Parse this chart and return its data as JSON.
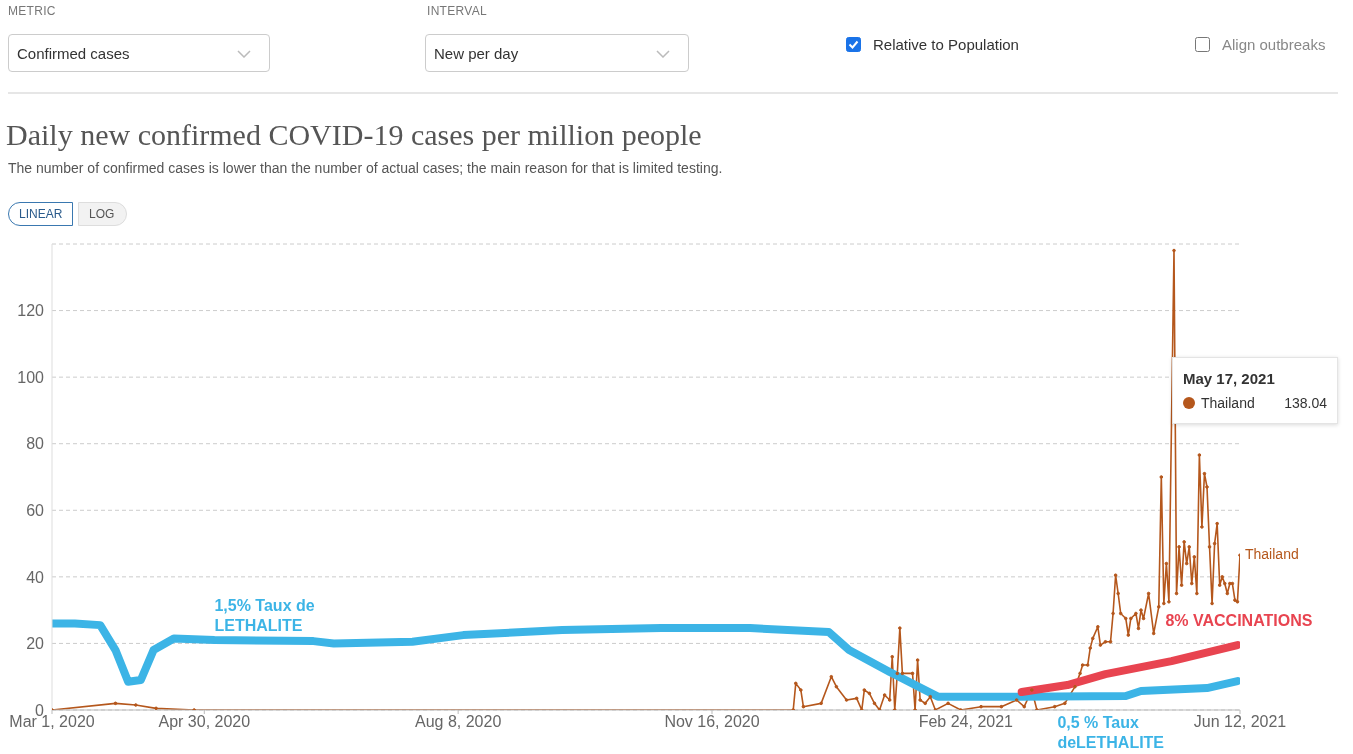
{
  "chart_data": {
    "type": "line",
    "title": "Daily new confirmed COVID-19 cases per million people",
    "subtitle": "The number of confirmed cases is lower than the number of actual cases; the main reason for that is limited testing.",
    "xlim": [
      "2020-03-01",
      "2021-06-12"
    ],
    "xticks": [
      {
        "value": "2020-03-01",
        "label": "Mar 1, 2020"
      },
      {
        "value": "2020-04-30",
        "label": "Apr 30, 2020"
      },
      {
        "value": "2020-08-08",
        "label": "Aug 8, 2020"
      },
      {
        "value": "2020-11-16",
        "label": "Nov 16, 2020"
      },
      {
        "value": "2021-02-24",
        "label": "Feb 24, 2021"
      },
      {
        "value": "2021-06-12",
        "label": "Jun 12, 2021"
      }
    ],
    "ylim": [
      0,
      140
    ],
    "yticks": [
      0,
      20,
      40,
      60,
      80,
      100,
      120
    ],
    "grid": "y",
    "legend": "top right",
    "marker": "circle",
    "series": [
      {
        "name": "Thailand",
        "color": "#b5571c",
        "x": [
          "2020-03-01",
          "2020-03-26",
          "2020-04-03",
          "2020-04-11",
          "2020-04-26",
          "2020-12-18",
          "2020-12-19",
          "2020-12-21",
          "2020-12-22",
          "2020-12-29",
          "2021-01-02",
          "2021-01-04",
          "2021-01-08",
          "2021-01-12",
          "2021-01-14",
          "2021-01-15",
          "2021-01-17",
          "2021-01-19",
          "2021-01-21",
          "2021-01-23",
          "2021-01-25",
          "2021-01-26",
          "2021-01-27",
          "2021-01-28",
          "2021-01-29",
          "2021-01-30",
          "2021-02-03",
          "2021-02-04",
          "2021-02-05",
          "2021-02-06",
          "2021-02-08",
          "2021-02-10",
          "2021-02-12",
          "2021-02-17",
          "2021-02-22",
          "2021-03-02",
          "2021-03-10",
          "2021-03-16",
          "2021-03-19",
          "2021-03-22",
          "2021-03-24",
          "2021-03-31",
          "2021-04-04",
          "2021-04-08",
          "2021-04-10",
          "2021-04-11",
          "2021-04-13",
          "2021-04-14",
          "2021-04-15",
          "2021-04-17",
          "2021-04-18",
          "2021-04-20",
          "2021-04-22",
          "2021-04-23",
          "2021-04-24",
          "2021-04-25",
          "2021-04-26",
          "2021-04-28",
          "2021-04-29",
          "2021-04-30",
          "2021-05-02",
          "2021-05-03",
          "2021-05-04",
          "2021-05-05",
          "2021-05-07",
          "2021-05-09",
          "2021-05-11",
          "2021-05-12",
          "2021-05-13",
          "2021-05-14",
          "2021-05-15",
          "2021-05-17",
          "2021-05-18",
          "2021-05-19",
          "2021-05-20",
          "2021-05-21",
          "2021-05-22",
          "2021-05-23",
          "2021-05-24",
          "2021-05-25",
          "2021-05-26",
          "2021-05-27",
          "2021-05-28",
          "2021-05-29",
          "2021-05-30",
          "2021-05-31",
          "2021-06-01",
          "2021-06-02",
          "2021-06-03",
          "2021-06-04",
          "2021-06-05",
          "2021-06-06",
          "2021-06-07",
          "2021-06-08",
          "2021-06-09",
          "2021-06-10",
          "2021-06-11",
          "2021-06-12"
        ],
        "values": [
          0,
          2,
          1.5,
          0.5,
          0,
          0,
          8,
          6,
          1,
          2,
          10,
          7,
          3,
          3.5,
          0,
          6,
          5,
          2,
          0,
          4.5,
          3,
          16,
          0,
          11,
          24.6,
          11,
          11,
          0,
          15,
          3,
          2,
          4,
          0,
          2,
          0,
          1,
          1,
          3,
          1,
          6,
          0,
          1,
          2,
          7,
          11,
          13.5,
          13.5,
          18.6,
          21.5,
          25,
          19.5,
          20.5,
          20.5,
          29,
          40.5,
          35,
          29,
          27.5,
          22.5,
          27.5,
          29,
          24.5,
          30,
          27.5,
          35,
          23,
          31,
          70,
          32,
          44,
          32.5,
          138.04,
          35,
          49,
          37.5,
          50.5,
          44,
          49,
          38,
          46,
          35,
          76.6,
          55,
          71,
          67,
          49,
          32,
          50,
          56,
          37.5,
          40,
          38,
          35,
          38,
          38,
          33,
          32.5,
          46.5
        ]
      },
      {
        "color": "#3cb4e6",
        "marker": "none",
        "x": [
          "2020-03-01",
          "2020-03-10",
          "2020-03-20",
          "2020-03-26",
          "2020-03-31",
          "2020-04-05",
          "2020-04-10",
          "2020-04-18",
          "2020-05-04",
          "2020-06-12",
          "2020-06-20",
          "2020-07-21",
          "2020-08-10",
          "2020-09-18",
          "2020-10-27",
          "2020-12-01",
          "2021-01-01",
          "2021-01-09",
          "2021-01-25",
          "2021-02-13",
          "2021-03-18",
          "2021-04-28",
          "2021-05-04",
          "2021-05-30",
          "2021-06-11"
        ],
        "values": [
          26,
          26,
          25.5,
          18,
          8.5,
          9,
          18,
          21.5,
          21,
          20.7,
          20,
          20.5,
          22.5,
          24,
          24.6,
          24.6,
          23.4,
          18,
          11.4,
          4,
          4,
          4.2,
          5.7,
          6.6,
          8.7
        ]
      },
      {
        "color": "#e84450",
        "marker": "none",
        "x": [
          "2021-03-18",
          "2021-04-05",
          "2021-04-20",
          "2021-05-16",
          "2021-06-11"
        ],
        "values": [
          5.4,
          7.5,
          10.8,
          14.7,
          19.5
        ]
      }
    ],
    "annotations": [
      "METRIC",
      "Confirmed cases",
      "INTERVAL",
      "New per day",
      "Relative to Population",
      "Align outbreaks",
      "LINEAR",
      "LOG",
      "May 17, 2021",
      "138.04",
      {
        "text": "1,5% Taux de\nLETHALITE",
        "x": "2020-05-04",
        "y": 21
      },
      {
        "text": "8% VACCINATIONS",
        "x": "2021-05-16",
        "y": 14.7
      },
      {
        "text": "0,5 % Taux\ndeLETHALITE",
        "x": "2021-04-05",
        "y": 4
      }
    ]
  }
}
